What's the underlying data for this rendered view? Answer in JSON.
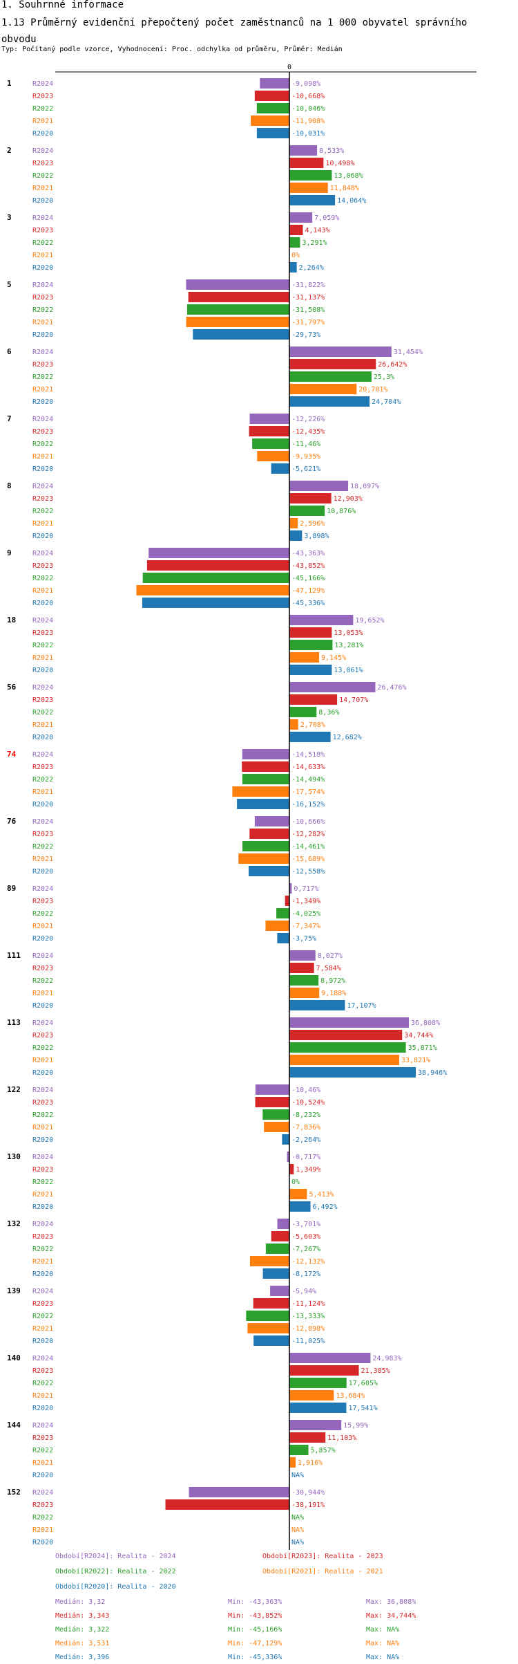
{
  "header": {
    "section": "1. Souhrnné informace",
    "title": "1.13 Průměrný evidenční přepočtený počet zaměstnanců na 1 000 obyvatel správního obvodu",
    "subtitle": "Typ: Počítaný podle vzorce, Vyhodnocení: Proc. odchylka od průměru, Průměr: Medián"
  },
  "colors": {
    "R2024": "#9467bd",
    "R2023": "#d62728",
    "R2022": "#2ca02c",
    "R2021": "#ff7f0e",
    "R2020": "#1f77b4",
    "highlight_group": "#ff0000"
  },
  "chart_data": {
    "type": "bar",
    "orientation": "horizontal",
    "title": "1.13 Průměrný evidenční přepočtený počet zaměstnanců na 1 000 obyvatel správního obvodu",
    "zero_label": "0",
    "xlim": [
      -50,
      40
    ],
    "unit": "%",
    "series_names": [
      "R2024",
      "R2023",
      "R2022",
      "R2021",
      "R2020"
    ],
    "highlight_group": "74",
    "groups": [
      {
        "id": "1",
        "values": [
          -9.098,
          -10.668,
          -10.046,
          -11.908,
          -10.031
        ],
        "labels": [
          "-9,098%",
          "-10,668%",
          "-10,046%",
          "-11,908%",
          "-10,031%"
        ]
      },
      {
        "id": "2",
        "values": [
          8.533,
          10.498,
          13.068,
          11.848,
          14.064
        ],
        "labels": [
          "8,533%",
          "10,498%",
          "13,068%",
          "11,848%",
          "14,064%"
        ]
      },
      {
        "id": "3",
        "values": [
          7.059,
          4.143,
          3.291,
          0,
          2.264
        ],
        "labels": [
          "7,059%",
          "4,143%",
          "3,291%",
          "0%",
          "2,264%"
        ]
      },
      {
        "id": "5",
        "values": [
          -31.822,
          -31.137,
          -31.508,
          -31.797,
          -29.73
        ],
        "labels": [
          "-31,822%",
          "-31,137%",
          "-31,508%",
          "-31,797%",
          "-29,73%"
        ]
      },
      {
        "id": "6",
        "values": [
          31.454,
          26.642,
          25.3,
          20.701,
          24.704
        ],
        "labels": [
          "31,454%",
          "26,642%",
          "25,3%",
          "20,701%",
          "24,704%"
        ]
      },
      {
        "id": "7",
        "values": [
          -12.226,
          -12.435,
          -11.46,
          -9.935,
          -5.621
        ],
        "labels": [
          "-12,226%",
          "-12,435%",
          "-11,46%",
          "-9,935%",
          "-5,621%"
        ]
      },
      {
        "id": "8",
        "values": [
          18.097,
          12.903,
          10.876,
          2.596,
          3.898
        ],
        "labels": [
          "18,097%",
          "12,903%",
          "10,876%",
          "2,596%",
          "3,898%"
        ]
      },
      {
        "id": "9",
        "values": [
          -43.363,
          -43.852,
          -45.166,
          -47.129,
          -45.336
        ],
        "labels": [
          "-43,363%",
          "-43,852%",
          "-45,166%",
          "-47,129%",
          "-45,336%"
        ]
      },
      {
        "id": "18",
        "values": [
          19.652,
          13.053,
          13.281,
          9.145,
          13.061
        ],
        "labels": [
          "19,652%",
          "13,053%",
          "13,281%",
          "9,145%",
          "13,061%"
        ]
      },
      {
        "id": "56",
        "values": [
          26.476,
          14.707,
          8.36,
          2.708,
          12.682
        ],
        "labels": [
          "26,476%",
          "14,707%",
          "8,36%",
          "2,708%",
          "12,682%"
        ]
      },
      {
        "id": "74",
        "values": [
          -14.518,
          -14.633,
          -14.494,
          -17.574,
          -16.152
        ],
        "labels": [
          "-14,518%",
          "-14,633%",
          "-14,494%",
          "-17,574%",
          "-16,152%"
        ]
      },
      {
        "id": "76",
        "values": [
          -10.666,
          -12.282,
          -14.461,
          -15.689,
          -12.558
        ],
        "labels": [
          "-10,666%",
          "-12,282%",
          "-14,461%",
          "-15,689%",
          "-12,558%"
        ]
      },
      {
        "id": "89",
        "values": [
          0.717,
          -1.349,
          -4.025,
          -7.347,
          -3.75
        ],
        "labels": [
          "0,717%",
          "-1,349%",
          "-4,025%",
          "-7,347%",
          "-3,75%"
        ]
      },
      {
        "id": "111",
        "values": [
          8.027,
          7.584,
          8.972,
          9.188,
          17.107
        ],
        "labels": [
          "8,027%",
          "7,584%",
          "8,972%",
          "9,188%",
          "17,107%"
        ]
      },
      {
        "id": "113",
        "values": [
          36.808,
          34.744,
          35.871,
          33.821,
          38.946
        ],
        "labels": [
          "36,808%",
          "34,744%",
          "35,871%",
          "33,821%",
          "38,946%"
        ]
      },
      {
        "id": "122",
        "values": [
          -10.46,
          -10.524,
          -8.232,
          -7.836,
          -2.264
        ],
        "labels": [
          "-10,46%",
          "-10,524%",
          "-8,232%",
          "-7,836%",
          "-2,264%"
        ]
      },
      {
        "id": "130",
        "values": [
          -0.717,
          1.349,
          0,
          5.413,
          6.492
        ],
        "labels": [
          "-0,717%",
          "1,349%",
          "0%",
          "5,413%",
          "6,492%"
        ]
      },
      {
        "id": "132",
        "values": [
          -3.701,
          -5.603,
          -7.267,
          -12.132,
          -8.172
        ],
        "labels": [
          "-3,701%",
          "-5,603%",
          "-7,267%",
          "-12,132%",
          "-8,172%"
        ]
      },
      {
        "id": "139",
        "values": [
          -5.94,
          -11.124,
          -13.333,
          -12.898,
          -11.025
        ],
        "labels": [
          "-5,94%",
          "-11,124%",
          "-13,333%",
          "-12,898%",
          "-11,025%"
        ]
      },
      {
        "id": "140",
        "values": [
          24.983,
          21.385,
          17.605,
          13.684,
          17.541
        ],
        "labels": [
          "24,983%",
          "21,385%",
          "17,605%",
          "13,684%",
          "17,541%"
        ]
      },
      {
        "id": "144",
        "values": [
          15.99,
          11.103,
          5.857,
          1.916,
          null
        ],
        "labels": [
          "15,99%",
          "11,103%",
          "5,857%",
          "1,916%",
          "NA%"
        ]
      },
      {
        "id": "152",
        "values": [
          -30.944,
          -38.191,
          null,
          null,
          null
        ],
        "labels": [
          "-30,944%",
          "-38,191%",
          "NA%",
          "NA%",
          "NA%"
        ]
      }
    ]
  },
  "legend": {
    "periods": [
      {
        "series": "R2024",
        "text": "Období[R2024]: Realita - 2024"
      },
      {
        "series": "R2023",
        "text": "Období[R2023]: Realita - 2023"
      },
      {
        "series": "R2022",
        "text": "Období[R2022]: Realita - 2022"
      },
      {
        "series": "R2021",
        "text": "Období[R2021]: Realita - 2021"
      },
      {
        "series": "R2020",
        "text": "Období[R2020]: Realita - 2020"
      }
    ],
    "stats": [
      {
        "series": "R2024",
        "median": "Medián: 3,32",
        "min": "Min: -43,363%",
        "max": "Max: 36,808%"
      },
      {
        "series": "R2023",
        "median": "Medián: 3,343",
        "min": "Min: -43,852%",
        "max": "Max: 34,744%"
      },
      {
        "series": "R2022",
        "median": "Medián: 3,322",
        "min": "Min: -45,166%",
        "max": "Max: NA%"
      },
      {
        "series": "R2021",
        "median": "Medián: 3,531",
        "min": "Min: -47,129%",
        "max": "Max: NA%"
      },
      {
        "series": "R2020",
        "median": "Medián: 3,396",
        "min": "Min: -45,336%",
        "max": "Max: NA%"
      }
    ]
  }
}
